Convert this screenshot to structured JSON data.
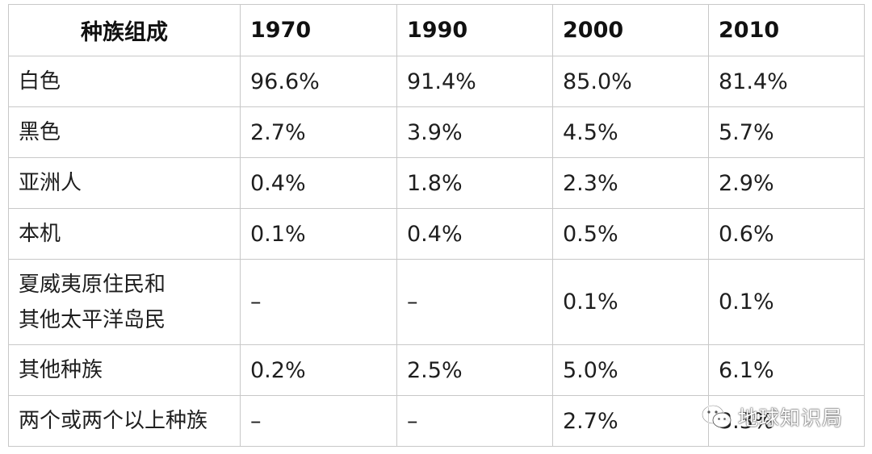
{
  "table": {
    "headers": [
      "种族组成",
      "1970",
      "1990",
      "2000",
      "2010"
    ],
    "rows": [
      {
        "label": "白色",
        "values": [
          "96.6%",
          "91.4%",
          "85.0%",
          "81.4%"
        ]
      },
      {
        "label": "黑色",
        "values": [
          "2.7%",
          "3.9%",
          "4.5%",
          "5.7%"
        ]
      },
      {
        "label": "亚洲人",
        "values": [
          "0.4%",
          "1.8%",
          "2.3%",
          "2.9%"
        ]
      },
      {
        "label": "本机",
        "values": [
          "0.1%",
          "0.4%",
          "0.5%",
          "0.6%"
        ]
      },
      {
        "label_line1": "夏威夷原住民和",
        "label_line2": "其他太平洋岛民",
        "values": [
          "–",
          "–",
          "0.1%",
          "0.1%"
        ]
      },
      {
        "label": "其他种族",
        "values": [
          "0.2%",
          "2.5%",
          "5.0%",
          "6.1%"
        ]
      },
      {
        "label": "两个或两个以上种族",
        "values": [
          "–",
          "–",
          "2.7%",
          "3.3%"
        ]
      }
    ]
  },
  "watermark": {
    "text": "地球知识局",
    "icon": "wechat-icon"
  }
}
